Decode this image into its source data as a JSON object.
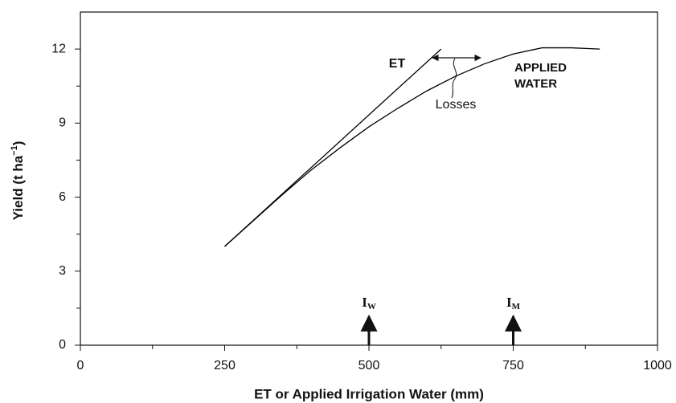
{
  "chart_data": {
    "type": "line",
    "xlabel": "ET or Applied Irrigation Water (mm)",
    "ylabel": [
      "Yield (t ha",
      "−1",
      ")"
    ],
    "xlim": [
      0,
      1000
    ],
    "ylim": [
      0,
      13.5
    ],
    "xticks": [
      0,
      250,
      500,
      750,
      1000
    ],
    "yticks": [
      0,
      3,
      6,
      9,
      12
    ],
    "xticks_minor": [
      125,
      375,
      625,
      875
    ],
    "yticks_minor": [
      1.5,
      4.5,
      7.5,
      10.5
    ],
    "series": [
      {
        "name": "ET",
        "color": "#000000",
        "x": [
          250,
          625
        ],
        "values": [
          4,
          12
        ]
      },
      {
        "name": "APPLIED WATER",
        "color": "#000000",
        "x": [
          250,
          300,
          350,
          400,
          450,
          500,
          550,
          600,
          650,
          700,
          750,
          800,
          850,
          900
        ],
        "values": [
          4,
          5.05,
          6.1,
          7.1,
          8.0,
          8.85,
          9.6,
          10.3,
          10.9,
          11.4,
          11.8,
          12.05,
          12.05,
          12.0
        ]
      }
    ],
    "annotation": "Losses",
    "markers": [
      {
        "x": 500,
        "label": "I",
        "sub": "W"
      },
      {
        "x": 750,
        "label": "I",
        "sub": "M"
      }
    ]
  }
}
